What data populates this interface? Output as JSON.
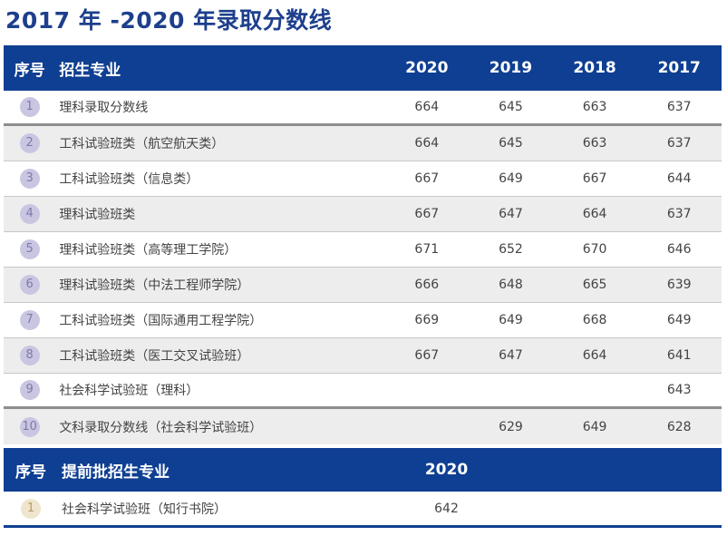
{
  "title": "2017 年 -2020 年录取分数线",
  "main_header": {
    "idx": "序号",
    "name": "招生专业",
    "years": [
      "2020",
      "2019",
      "2018",
      "2017"
    ]
  },
  "rows": [
    {
      "idx": "1",
      "name": "理科录取分数线",
      "scores": [
        "664",
        "645",
        "663",
        "637"
      ]
    },
    {
      "idx": "2",
      "name": "工科试验班类（航空航天类）",
      "scores": [
        "664",
        "645",
        "663",
        "637"
      ]
    },
    {
      "idx": "3",
      "name": "工科试验班类（信息类）",
      "scores": [
        "667",
        "649",
        "667",
        "644"
      ]
    },
    {
      "idx": "4",
      "name": "理科试验班类",
      "scores": [
        "667",
        "647",
        "664",
        "637"
      ]
    },
    {
      "idx": "5",
      "name": "理科试验班类（高等理工学院）",
      "scores": [
        "671",
        "652",
        "670",
        "646"
      ]
    },
    {
      "idx": "6",
      "name": "理科试验班类（中法工程师学院）",
      "scores": [
        "666",
        "648",
        "665",
        "639"
      ]
    },
    {
      "idx": "7",
      "name": "工科试验班类（国际通用工程学院）",
      "scores": [
        "669",
        "649",
        "668",
        "649"
      ]
    },
    {
      "idx": "8",
      "name": "工科试验班类（医工交叉试验班）",
      "scores": [
        "667",
        "647",
        "664",
        "641"
      ]
    },
    {
      "idx": "9",
      "name": "社会科学试验班（理科）",
      "scores": [
        "",
        "",
        "",
        "643"
      ]
    },
    {
      "idx": "10",
      "name": "文科录取分数线（社会科学试验班）",
      "scores": [
        "",
        "629",
        "649",
        "628"
      ]
    }
  ],
  "sub_header": {
    "idx": "序号",
    "name": "提前批招生专业",
    "year": "2020"
  },
  "sub_rows": [
    {
      "idx": "1",
      "name": "社会科学试验班（知行书院）",
      "score": "642"
    }
  ]
}
